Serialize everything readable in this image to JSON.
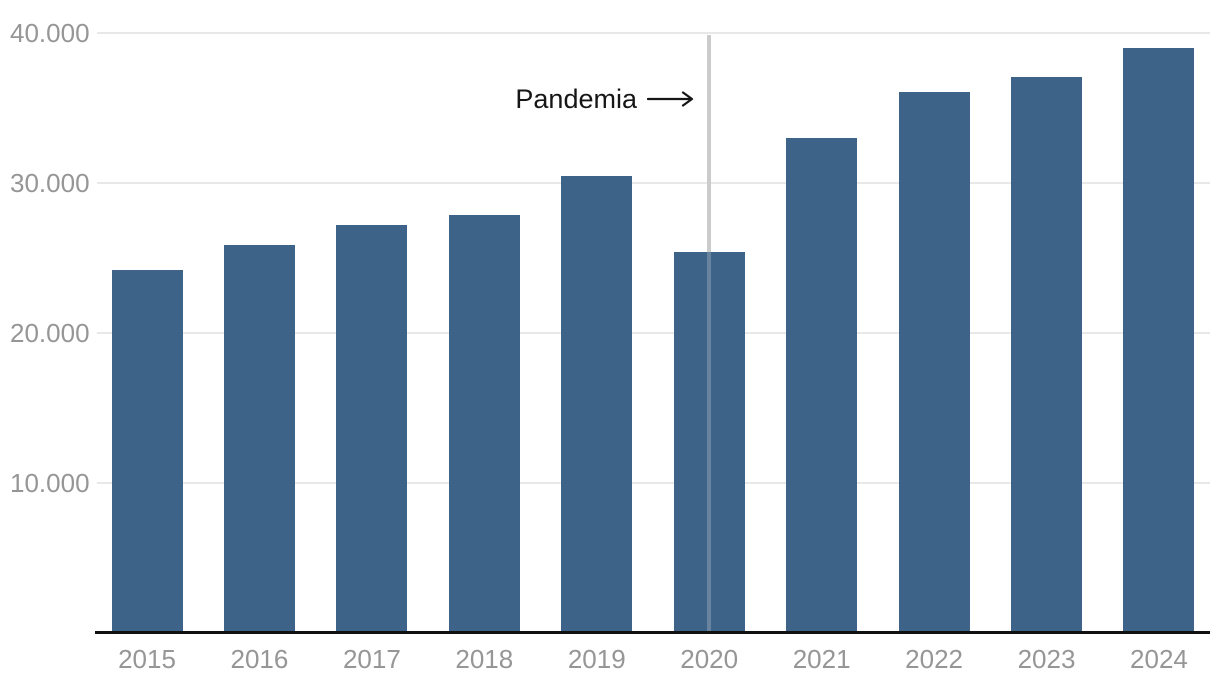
{
  "chart_data": {
    "type": "bar",
    "title": "",
    "xlabel": "",
    "ylabel": "",
    "categories": [
      "2015",
      "2016",
      "2017",
      "2018",
      "2019",
      "2020",
      "2021",
      "2022",
      "2023",
      "2024"
    ],
    "values": [
      24200,
      25900,
      27200,
      27900,
      30500,
      25400,
      33000,
      36100,
      37100,
      39000
    ],
    "ylim": [
      0,
      40000
    ],
    "y_ticks": [
      {
        "value": 40000,
        "label": "40.000"
      },
      {
        "value": 30000,
        "label": "30.000"
      },
      {
        "value": 20000,
        "label": "20.000"
      },
      {
        "value": 10000,
        "label": "10.000"
      }
    ],
    "grid": "horizontal",
    "legend": "none",
    "annotation": {
      "label": "Pandemia",
      "arrow_icon": "right-arrow",
      "target_category": "2020"
    }
  },
  "colors": {
    "background": "#FFFFFF",
    "bar": "#3D6389",
    "gridline": "#E8E8E8",
    "axis_line": "#111111",
    "tick_label": "#969696",
    "annotation_text": "#161616",
    "event_line": "#CBCBCB"
  }
}
